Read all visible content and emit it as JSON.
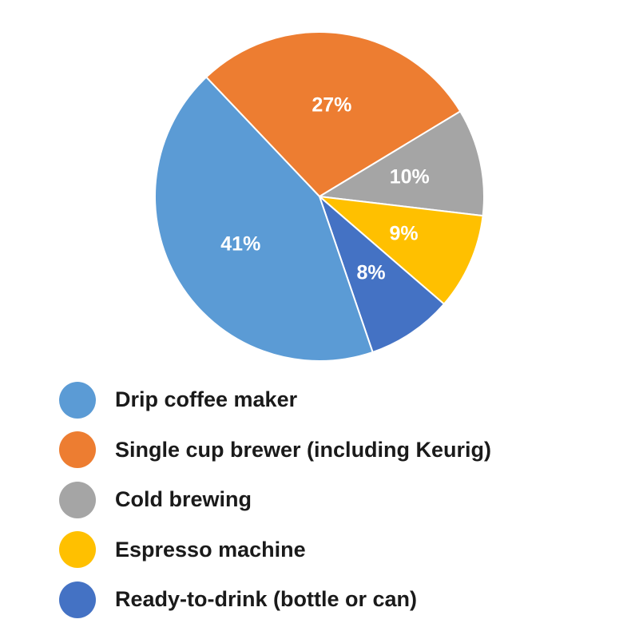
{
  "chart_data": {
    "type": "pie",
    "title": "",
    "categories": [
      "Drip coffee maker",
      "Single cup brewer (including Keurig)",
      "Cold brewing",
      "Espresso machine",
      "Ready-to-drink (bottle or can)"
    ],
    "values": [
      41,
      27,
      10,
      9,
      8
    ],
    "value_labels": [
      "41%",
      "27%",
      "10%",
      "9%",
      "8%"
    ],
    "colors": [
      "#5b9bd5",
      "#ed7d31",
      "#a5a5a5",
      "#ffc000",
      "#4472c4"
    ],
    "legend_position": "bottom-left"
  }
}
